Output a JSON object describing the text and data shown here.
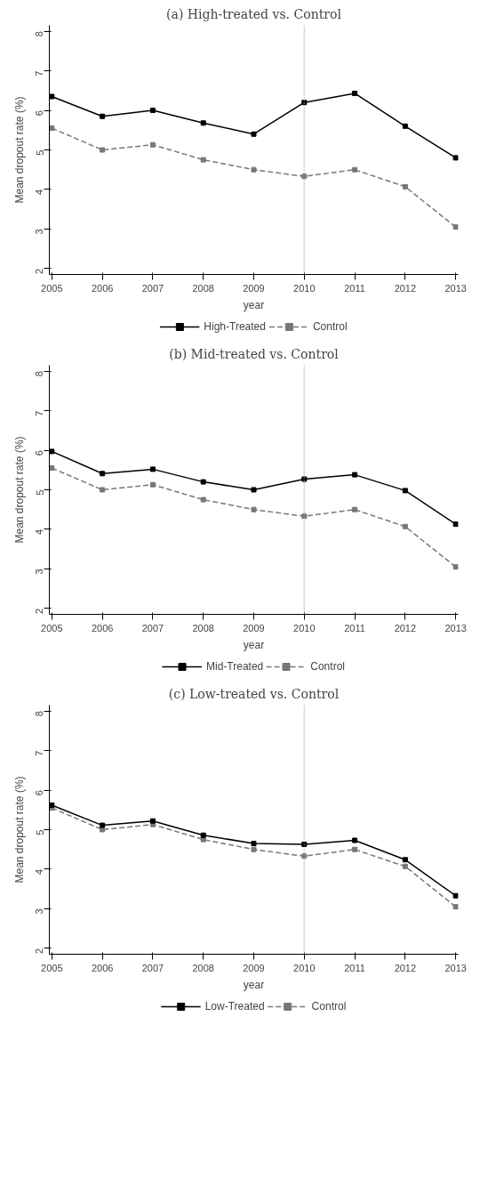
{
  "chart_data": [
    {
      "type": "line",
      "title": "(a) High-treated vs. Control",
      "xlabel": "year",
      "ylabel": "Mean dropout rate (%)",
      "x": [
        2005,
        2006,
        2007,
        2008,
        2009,
        2010,
        2011,
        2012,
        2013
      ],
      "xlim": [
        2004.95,
        2013.05
      ],
      "xticks": [
        2005,
        2006,
        2007,
        2008,
        2009,
        2010,
        2011,
        2012,
        2013
      ],
      "ylim": [
        1.85,
        8.15
      ],
      "yticks": [
        2,
        3,
        4,
        5,
        6,
        7,
        8
      ],
      "marker": "square",
      "legend": "bottom",
      "grid": false,
      "ref_lines": [
        {
          "axis": "x",
          "value": 2010,
          "label": null,
          "color": "#999999",
          "line_style": "dotted"
        }
      ],
      "series": [
        {
          "name": "High-Treated",
          "color": "#000000",
          "line_style": "solid",
          "values": [
            6.35,
            5.85,
            6.0,
            5.68,
            5.4,
            6.2,
            6.43,
            5.6,
            4.8
          ]
        },
        {
          "name": "Control",
          "color": "#777777",
          "line_style": "dashed",
          "values": [
            5.55,
            5.0,
            5.13,
            4.75,
            4.5,
            4.33,
            4.5,
            4.07,
            3.05
          ]
        }
      ]
    },
    {
      "type": "line",
      "title": "(b) Mid-treated vs. Control",
      "xlabel": "year",
      "ylabel": "Mean dropout rate (%)",
      "x": [
        2005,
        2006,
        2007,
        2008,
        2009,
        2010,
        2011,
        2012,
        2013
      ],
      "xlim": [
        2004.95,
        2013.05
      ],
      "xticks": [
        2005,
        2006,
        2007,
        2008,
        2009,
        2010,
        2011,
        2012,
        2013
      ],
      "ylim": [
        1.85,
        8.15
      ],
      "yticks": [
        2,
        3,
        4,
        5,
        6,
        7,
        8
      ],
      "marker": "square",
      "legend": "bottom",
      "grid": false,
      "ref_lines": [
        {
          "axis": "x",
          "value": 2010,
          "label": null,
          "color": "#999999",
          "line_style": "dotted"
        }
      ],
      "series": [
        {
          "name": "Mid-Treated",
          "color": "#000000",
          "line_style": "solid",
          "values": [
            5.97,
            5.41,
            5.52,
            5.2,
            5.0,
            5.27,
            5.38,
            4.98,
            4.13
          ]
        },
        {
          "name": "Control",
          "color": "#777777",
          "line_style": "dashed",
          "values": [
            5.55,
            5.0,
            5.13,
            4.75,
            4.5,
            4.33,
            4.5,
            4.07,
            3.05
          ]
        }
      ]
    },
    {
      "type": "line",
      "title": "(c) Low-treated vs. Control",
      "xlabel": "year",
      "ylabel": "Mean dropout rate (%)",
      "x": [
        2005,
        2006,
        2007,
        2008,
        2009,
        2010,
        2011,
        2012,
        2013
      ],
      "xlim": [
        2004.95,
        2013.05
      ],
      "xticks": [
        2005,
        2006,
        2007,
        2008,
        2009,
        2010,
        2011,
        2012,
        2013
      ],
      "ylim": [
        1.85,
        8.15
      ],
      "yticks": [
        2,
        3,
        4,
        5,
        6,
        7,
        8
      ],
      "marker": "square",
      "legend": "bottom",
      "grid": false,
      "ref_lines": [
        {
          "axis": "x",
          "value": 2010,
          "label": null,
          "color": "#999999",
          "line_style": "dotted"
        }
      ],
      "series": [
        {
          "name": "Low-Treated",
          "color": "#000000",
          "line_style": "solid",
          "values": [
            5.62,
            5.11,
            5.22,
            4.86,
            4.65,
            4.63,
            4.73,
            4.24,
            3.33
          ]
        },
        {
          "name": "Control",
          "color": "#777777",
          "line_style": "dashed",
          "values": [
            5.55,
            5.0,
            5.13,
            4.75,
            4.5,
            4.33,
            4.5,
            4.07,
            3.05
          ]
        }
      ]
    }
  ]
}
